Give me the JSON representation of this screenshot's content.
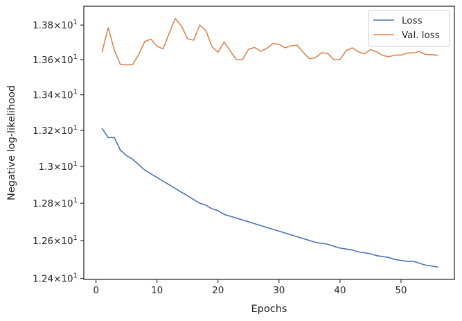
{
  "chart_data": {
    "type": "line",
    "xlabel": "Epochs",
    "ylabel": "Negative log-likelihood",
    "xlim": [
      -2,
      58.75
    ],
    "ylim": [
      12.395,
      13.91
    ],
    "y_scale": "log",
    "x_ticks": [
      0,
      10,
      20,
      30,
      40,
      50
    ],
    "x_tick_labels": [
      "0",
      "10",
      "20",
      "30",
      "40",
      "50"
    ],
    "y_ticks": [
      {
        "value": 12.4,
        "mantissa": "1.24"
      },
      {
        "value": 12.6,
        "mantissa": "1.26"
      },
      {
        "value": 12.8,
        "mantissa": "1.28"
      },
      {
        "value": 13.0,
        "mantissa": "1.3"
      },
      {
        "value": 13.2,
        "mantissa": "1.32"
      },
      {
        "value": 13.4,
        "mantissa": "1.34"
      },
      {
        "value": 13.6,
        "mantissa": "1.36"
      },
      {
        "value": 13.8,
        "mantissa": "1.38"
      }
    ],
    "y_tick_suffix": "×10",
    "y_tick_exponent": "1",
    "grid": false,
    "legend_position": "top-right",
    "x": [
      1,
      2,
      3,
      4,
      5,
      6,
      7,
      8,
      9,
      10,
      11,
      12,
      13,
      14,
      15,
      16,
      17,
      18,
      19,
      20,
      21,
      22,
      23,
      24,
      25,
      26,
      27,
      28,
      29,
      30,
      31,
      32,
      33,
      34,
      35,
      36,
      37,
      38,
      39,
      40,
      41,
      42,
      43,
      44,
      45,
      46,
      47,
      48,
      49,
      50,
      51,
      52,
      53,
      54,
      55,
      56
    ],
    "series": [
      {
        "name": "Loss",
        "color": "#4c72b0",
        "values": [
          13.21,
          13.16,
          13.16,
          13.09,
          13.06,
          13.04,
          13.01,
          12.98,
          12.96,
          12.94,
          12.92,
          12.9,
          12.88,
          12.86,
          12.84,
          12.82,
          12.8,
          12.79,
          12.77,
          12.76,
          12.74,
          12.73,
          12.72,
          12.71,
          12.7,
          12.69,
          12.68,
          12.67,
          12.66,
          12.65,
          12.64,
          12.63,
          12.62,
          12.61,
          12.6,
          12.59,
          12.585,
          12.58,
          12.57,
          12.56,
          12.555,
          12.55,
          12.54,
          12.535,
          12.53,
          12.52,
          12.515,
          12.51,
          12.5,
          12.495,
          12.49,
          12.49,
          12.48,
          12.47,
          12.465,
          12.46
        ]
      },
      {
        "name": "Val. loss",
        "color": "#dd8452",
        "values": [
          13.645,
          13.785,
          13.655,
          13.572,
          13.57,
          13.572,
          13.63,
          13.705,
          13.718,
          13.677,
          13.662,
          13.753,
          13.838,
          13.795,
          13.72,
          13.712,
          13.8,
          13.768,
          13.675,
          13.643,
          13.702,
          13.65,
          13.6,
          13.6,
          13.66,
          13.67,
          13.648,
          13.665,
          13.693,
          13.688,
          13.668,
          13.68,
          13.683,
          13.64,
          13.605,
          13.612,
          13.64,
          13.635,
          13.6,
          13.6,
          13.652,
          13.668,
          13.645,
          13.633,
          13.658,
          13.645,
          13.624,
          13.617,
          13.626,
          13.626,
          13.638,
          13.638,
          13.647,
          13.63,
          13.628,
          13.625
        ]
      }
    ]
  }
}
